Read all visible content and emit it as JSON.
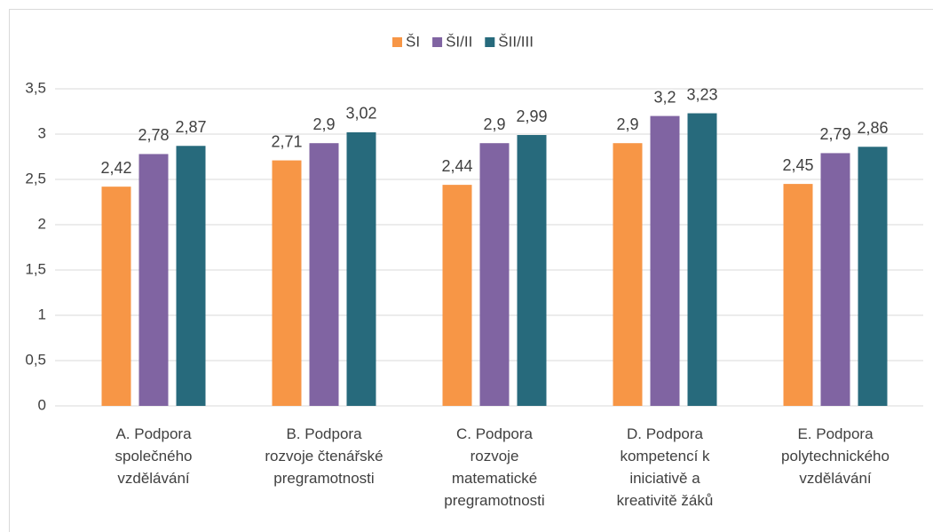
{
  "chart_data": {
    "type": "bar",
    "categories": [
      [
        "A. Podpora",
        "společného",
        "vzdělávání"
      ],
      [
        "B. Podpora",
        "rozvoje čtenářské",
        "pregramotnosti"
      ],
      [
        "C. Podpora",
        "rozvoje",
        "matematické",
        "pregramotnosti"
      ],
      [
        "D. Podpora",
        "kompetencí k",
        "iniciativě a",
        "kreativitě žáků"
      ],
      [
        "E. Podpora",
        "polytechnického",
        "vzdělávání"
      ]
    ],
    "series": [
      {
        "name": "ŠI",
        "color": "#f79646",
        "values": [
          2.42,
          2.71,
          2.44,
          2.9,
          2.45
        ],
        "value_labels": [
          "2,42",
          "2,71",
          "2,44",
          "2,9",
          "2,45"
        ]
      },
      {
        "name": "ŠI/II",
        "color": "#8064a2",
        "values": [
          2.78,
          2.9,
          2.9,
          3.2,
          2.79
        ],
        "value_labels": [
          "2,78",
          "2,9",
          "2,9",
          "3,2",
          "2,79"
        ]
      },
      {
        "name": "ŠII/III",
        "color": "#276a7c",
        "values": [
          2.87,
          3.02,
          2.99,
          3.23,
          2.86
        ],
        "value_labels": [
          "2,87",
          "3,02",
          "2,99",
          "3,23",
          "2,86"
        ]
      }
    ],
    "ylim": [
      0,
      3.5
    ],
    "yticks": [
      0,
      {
        "value": 0.5,
        "label": "0,5"
      },
      1,
      {
        "value": 1.5,
        "label": "1,5"
      },
      2,
      {
        "value": 2.5,
        "label": "2,5"
      },
      3,
      {
        "value": 3.5,
        "label": "3,5"
      }
    ],
    "grid": true,
    "legend": "top"
  }
}
